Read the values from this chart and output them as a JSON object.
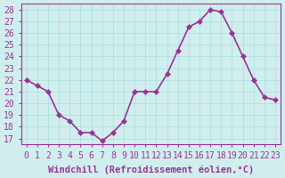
{
  "x": [
    0,
    1,
    2,
    3,
    4,
    5,
    6,
    7,
    8,
    9,
    10,
    11,
    12,
    13,
    14,
    15,
    16,
    17,
    18,
    19,
    20,
    21,
    22,
    23
  ],
  "y": [
    22,
    21.5,
    21,
    19,
    18.5,
    17.5,
    17.5,
    16.8,
    17.5,
    18.5,
    21,
    21,
    21,
    22.5,
    24.5,
    26.5,
    27,
    28,
    27.8,
    26,
    24,
    22,
    20.5,
    20.3
  ],
  "line_color": "#993399",
  "marker_color": "#993399",
  "background_color": "#d0eeee",
  "grid_color": "#aadddd",
  "xlabel": "Windchill (Refroidissement éolien,°C)",
  "ylim": [
    16.5,
    28.5
  ],
  "yticks": [
    17,
    18,
    19,
    20,
    21,
    22,
    23,
    24,
    25,
    26,
    27,
    28
  ],
  "xticks": [
    0,
    1,
    2,
    3,
    4,
    5,
    6,
    7,
    8,
    9,
    10,
    11,
    12,
    13,
    14,
    15,
    16,
    17,
    18,
    19,
    20,
    21,
    22,
    23
  ],
  "xlim": [
    -0.5,
    23.5
  ],
  "font_color": "#993399",
  "tick_fontsize": 7,
  "label_fontsize": 7.5,
  "linewidth": 1.2,
  "marker_size": 3
}
